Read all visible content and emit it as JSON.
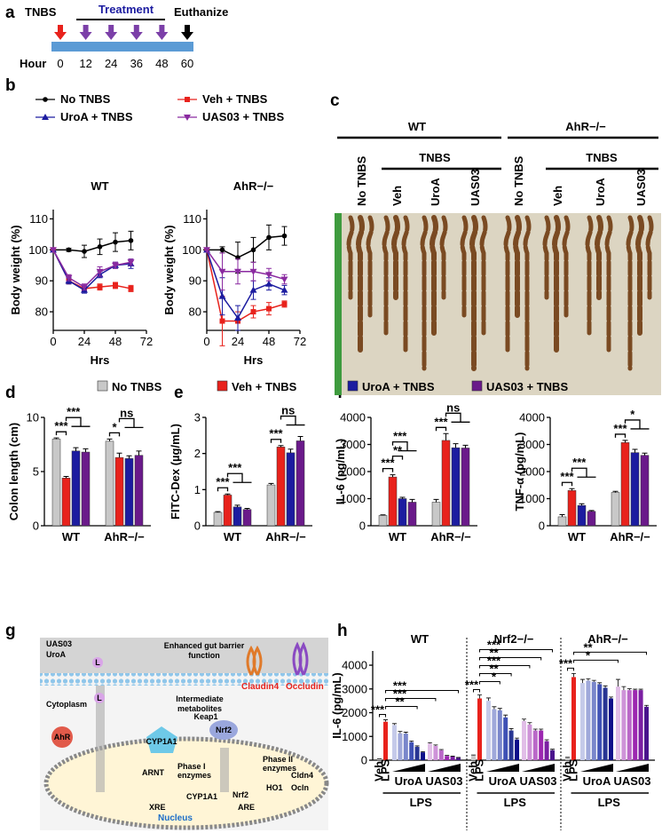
{
  "panel_labels": [
    "a",
    "b",
    "c",
    "d",
    "e",
    "f",
    "g",
    "h"
  ],
  "timeline": {
    "start_label": "TNBS",
    "treatment_label": "Treatment",
    "end_label": "Euthanize",
    "axis_label": "Hour",
    "ticks": [
      0,
      12,
      24,
      36,
      48,
      60
    ]
  },
  "photo": {
    "genotypes": [
      "WT",
      "AhR−/−"
    ],
    "treatment_label": "TNBS",
    "lanes": [
      "No TNBS",
      "Veh",
      "UroA",
      "UAS03",
      "No TNBS",
      "Veh",
      "UroA",
      "UAS03"
    ]
  },
  "diagram": {
    "compounds": [
      "UAS03",
      "UroA"
    ],
    "ligand": "L",
    "barrier": [
      "Enhanced gut barrier",
      "function"
    ],
    "cytoplasm": "Cytoplasm",
    "metabolites": [
      "Intermediate",
      "metabolites"
    ],
    "ahr": "AhR",
    "cyp": "CYP1A1",
    "keap": "Keap1",
    "nrf2": "Nrf2",
    "claudin": "Claudin4",
    "occludin": "Occludin",
    "phase1": [
      "Phase I",
      "enzymes"
    ],
    "phase2": [
      "Phase II",
      "enzymes"
    ],
    "nucleus": "Nucleus",
    "arnt": "ARNT",
    "xre": "XRE",
    "are": "ARE",
    "ho1": "HO1",
    "cldn4": "Cldn4",
    "ocln": "Ocln"
  },
  "chart_data": [
    {
      "type": "line",
      "title": "WT",
      "x": [
        0,
        12,
        24,
        36,
        48,
        60
      ],
      "xlim": [
        0,
        72
      ],
      "xticks": [
        0,
        24,
        48,
        72
      ],
      "ylim": [
        74,
        113
      ],
      "yticks": [
        80,
        90,
        100,
        110
      ],
      "xlabel": "Hrs",
      "ylabel": "Body weight (%)",
      "series": [
        {
          "name": "No TNBS",
          "color": "#000000",
          "marker": "circle",
          "values": [
            100,
            100,
            99.5,
            101,
            102.5,
            103
          ],
          "errors": [
            0,
            0.5,
            2,
            2.5,
            3,
            3
          ]
        },
        {
          "name": "Veh + TNBS",
          "color": "#e8221c",
          "marker": "square",
          "values": [
            100,
            90,
            87.5,
            88,
            88.5,
            87.5
          ],
          "errors": [
            0,
            1,
            1,
            1,
            1,
            1
          ]
        },
        {
          "name": "UroA + TNBS",
          "color": "#1c1ca0",
          "marker": "triangle",
          "values": [
            100,
            90,
            87,
            92,
            95,
            95.5
          ],
          "errors": [
            0,
            1,
            1,
            1,
            1,
            1.5
          ]
        },
        {
          "name": "UAS03 + TNBS",
          "color": "#8a2aa0",
          "marker": "triangle-down",
          "values": [
            100,
            91,
            88,
            93,
            95,
            96
          ],
          "errors": [
            0,
            1,
            1,
            1.5,
            1,
            1
          ]
        }
      ]
    },
    {
      "type": "line",
      "title": "AhR−/−",
      "x": [
        0,
        12,
        24,
        36,
        48,
        60
      ],
      "xlim": [
        0,
        72
      ],
      "xticks": [
        0,
        24,
        48,
        72
      ],
      "ylim": [
        74,
        113
      ],
      "yticks": [
        80,
        90,
        100,
        110
      ],
      "xlabel": "Hrs",
      "ylabel": "Body weight (%)",
      "series": [
        {
          "color": "#000000",
          "marker": "circle",
          "values": [
            100,
            100,
            97.5,
            100,
            104,
            104.5
          ],
          "errors": [
            0,
            1,
            5,
            4,
            4,
            3
          ]
        },
        {
          "color": "#e8221c",
          "marker": "square",
          "values": [
            100,
            77,
            77,
            80,
            81,
            82.5
          ],
          "errors": [
            0,
            8,
            3,
            2,
            2,
            1
          ]
        },
        {
          "color": "#1c1ca0",
          "marker": "triangle",
          "values": [
            100,
            85,
            78,
            87,
            89,
            87
          ],
          "errors": [
            0,
            6,
            4,
            3,
            2,
            1.5
          ]
        },
        {
          "color": "#8a2aa0",
          "marker": "triangle-down",
          "values": [
            100,
            93,
            93,
            93,
            92,
            90.5
          ],
          "errors": [
            0,
            6,
            4,
            3,
            2,
            1.5
          ]
        }
      ]
    },
    {
      "type": "bar",
      "categories": [
        "WT",
        "AhR−/−"
      ],
      "ylim": [
        0,
        10
      ],
      "yticks": [
        0,
        5,
        10
      ],
      "ylabel": "Colon length (cm)",
      "series": [
        {
          "name": "No TNBS",
          "color": "#c8c8c8",
          "values": [
            8.0,
            7.8
          ],
          "errors": [
            0.1,
            0.2
          ]
        },
        {
          "name": "Veh + TNBS",
          "color": "#e8221c",
          "values": [
            4.4,
            6.3
          ],
          "errors": [
            0.15,
            0.4
          ]
        },
        {
          "name": "UroA + TNBS",
          "color": "#1c1ca0",
          "values": [
            6.9,
            6.2
          ],
          "errors": [
            0.3,
            0.25
          ]
        },
        {
          "name": "UAS03 + TNBS",
          "color": "#6a1a8a",
          "values": [
            6.8,
            6.5
          ],
          "errors": [
            0.3,
            0.4
          ]
        }
      ],
      "annotations": [
        [
          "***",
          "***"
        ],
        [
          "*",
          "ns"
        ]
      ]
    },
    {
      "type": "bar",
      "categories": [
        "WT",
        "AhR−/−"
      ],
      "ylim": [
        0,
        3
      ],
      "yticks": [
        0,
        1,
        2,
        3
      ],
      "ylabel": "FITC-Dex (µg/mL)",
      "series": [
        {
          "color": "#c8c8c8",
          "values": [
            0.37,
            1.13
          ],
          "errors": [
            0.02,
            0.04
          ]
        },
        {
          "color": "#e8221c",
          "values": [
            0.85,
            2.18
          ],
          "errors": [
            0.03,
            0.04
          ]
        },
        {
          "color": "#1c1ca0",
          "values": [
            0.52,
            2.02
          ],
          "errors": [
            0.05,
            0.1
          ]
        },
        {
          "color": "#6a1a8a",
          "values": [
            0.45,
            2.35
          ],
          "errors": [
            0.03,
            0.12
          ]
        }
      ],
      "annotations": [
        [
          "***",
          "***"
        ],
        [
          "***",
          "ns"
        ]
      ]
    },
    {
      "type": "bar",
      "categories": [
        "WT",
        "AhR−/−"
      ],
      "ylim": [
        0,
        4000
      ],
      "yticks": [
        0,
        1000,
        2000,
        3000,
        4000
      ],
      "ylabel": "IL-6 (pg/mL)",
      "series": [
        {
          "color": "#c8c8c8",
          "values": [
            380,
            870
          ],
          "errors": [
            20,
            100
          ]
        },
        {
          "color": "#e8221c",
          "values": [
            1800,
            3150
          ],
          "errors": [
            80,
            250
          ]
        },
        {
          "color": "#1c1ca0",
          "values": [
            1000,
            2880
          ],
          "errors": [
            50,
            150
          ]
        },
        {
          "color": "#6a1a8a",
          "values": [
            870,
            2870
          ],
          "errors": [
            100,
            100
          ]
        }
      ],
      "annotations": [
        [
          "***",
          "***",
          "**"
        ],
        [
          "***",
          "ns"
        ]
      ]
    },
    {
      "type": "bar",
      "categories": [
        "WT",
        "AhR−/−"
      ],
      "ylim": [
        0,
        4000
      ],
      "yticks": [
        0,
        1000,
        2000,
        3000,
        4000
      ],
      "ylabel": "TNF-α (pg/mL)",
      "series": [
        {
          "color": "#c8c8c8",
          "values": [
            330,
            1230
          ],
          "errors": [
            80,
            40
          ]
        },
        {
          "color": "#e8221c",
          "values": [
            1300,
            3070
          ],
          "errors": [
            70,
            80
          ]
        },
        {
          "color": "#1c1ca0",
          "values": [
            750,
            2700
          ],
          "errors": [
            60,
            120
          ]
        },
        {
          "color": "#6a1a8a",
          "values": [
            530,
            2600
          ],
          "errors": [
            30,
            80
          ]
        }
      ],
      "annotations": [
        [
          "***",
          "***"
        ],
        [
          "***",
          "*"
        ]
      ]
    },
    {
      "type": "dose_bar",
      "ylim": [
        0,
        4600
      ],
      "yticks": [
        0,
        1000,
        2000,
        3000,
        4000
      ],
      "ylabel": "IL-6 (pg/mL)",
      "bar_labels": [
        "Veh",
        "LPS"
      ],
      "treatment_labels": [
        "UroA",
        "UAS03"
      ],
      "lps_label": "LPS",
      "colors": [
        "#c8c8c8",
        "#e8221c",
        "#c5cae9",
        "#9fa8da",
        "#7986cb",
        "#3f51b5",
        "#283593",
        "#0d0d8a",
        "#e1bee7",
        "#ce93d8",
        "#ba68c8",
        "#9c27b0",
        "#7b1fa2",
        "#4a148c"
      ],
      "groups": [
        {
          "name": "WT",
          "values": [
            50,
            1620,
            1480,
            1130,
            1120,
            760,
            560,
            330,
            700,
            600,
            420,
            180,
            150,
            100
          ],
          "errors": [
            10,
            80,
            60,
            80,
            60,
            50,
            40,
            30,
            40,
            40,
            30,
            20,
            20,
            15
          ],
          "annotations": [
            "***",
            "**",
            "***",
            "***"
          ]
        },
        {
          "name": "Nrf2−/−",
          "values": [
            200,
            2600,
            2500,
            2150,
            2100,
            1800,
            1250,
            870,
            1650,
            1500,
            1250,
            1250,
            800,
            420
          ],
          "errors": [
            20,
            150,
            120,
            100,
            80,
            100,
            80,
            60,
            80,
            80,
            60,
            60,
            60,
            40
          ],
          "annotations": [
            "***",
            "*",
            "**",
            "***",
            "**",
            "***"
          ]
        },
        {
          "name": "AhR−/−",
          "values": [
            100,
            3500,
            3250,
            3350,
            3300,
            3200,
            3050,
            2600,
            3100,
            2950,
            2950,
            2950,
            2950,
            2250
          ],
          "errors": [
            20,
            150,
            150,
            80,
            60,
            60,
            80,
            60,
            300,
            150,
            60,
            40,
            40,
            60
          ],
          "annotations": [
            "***",
            "*",
            "**"
          ]
        }
      ]
    }
  ]
}
